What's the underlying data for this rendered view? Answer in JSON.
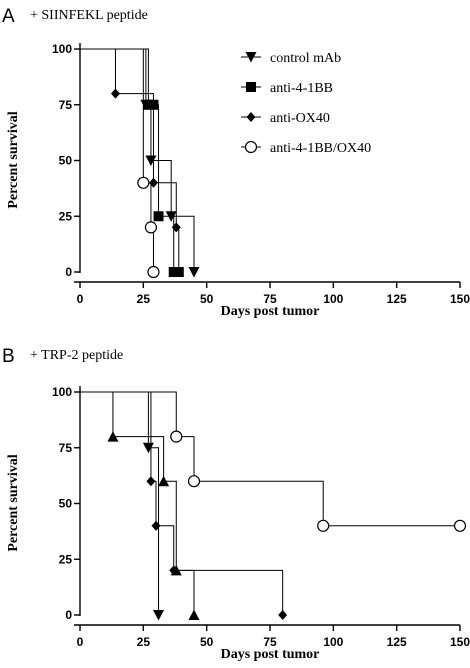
{
  "chart_data": [
    {
      "type": "line",
      "panel_label": "A",
      "title": "+ SIINFEKL peptide",
      "xlabel": "Days post tumor",
      "ylabel": "Percent survival",
      "xlim": [
        0,
        150
      ],
      "ylim": [
        0,
        100
      ],
      "x_ticks": [
        "0",
        "25",
        "50",
        "75",
        "100",
        "125",
        "150"
      ],
      "y_ticks": [
        "0",
        "25",
        "50",
        "75",
        "100"
      ],
      "legend_position": "top-right",
      "series": [
        {
          "name": "control mAb",
          "marker": "triangle-down",
          "x": [
            0,
            26,
            28,
            36,
            45
          ],
          "y": [
            100,
            75,
            50,
            25,
            0
          ]
        },
        {
          "name": "anti-4-1BB",
          "marker": "square",
          "x": [
            0,
            27,
            29,
            31,
            37,
            39
          ],
          "y": [
            100,
            75,
            75,
            25,
            0,
            0
          ]
        },
        {
          "name": "anti-OX40",
          "marker": "diamond",
          "x": [
            0,
            14,
            29,
            38,
            39
          ],
          "y": [
            100,
            80,
            40,
            20,
            0
          ]
        },
        {
          "name": "anti-4-1BB/OX40",
          "marker": "circle-open",
          "x": [
            0,
            25,
            28,
            29
          ],
          "y": [
            100,
            40,
            20,
            0
          ]
        }
      ]
    },
    {
      "type": "line",
      "panel_label": "B",
      "title": "+ TRP-2 peptide",
      "xlabel": "Days post tumor",
      "ylabel": "Percent survival",
      "xlim": [
        0,
        150
      ],
      "ylim": [
        0,
        100
      ],
      "x_ticks": [
        "0",
        "25",
        "50",
        "75",
        "100",
        "125",
        "150"
      ],
      "y_ticks": [
        "0",
        "25",
        "50",
        "75",
        "100"
      ],
      "series": [
        {
          "name": "",
          "marker": "triangle-down",
          "x": [
            0,
            27,
            31
          ],
          "y": [
            100,
            75,
            0
          ]
        },
        {
          "name": "",
          "marker": "triangle-up",
          "x": [
            0,
            13,
            33,
            38,
            45
          ],
          "y": [
            100,
            80,
            60,
            20,
            0
          ]
        },
        {
          "name": "",
          "marker": "diamond",
          "x": [
            0,
            28,
            30,
            37,
            80
          ],
          "y": [
            100,
            60,
            40,
            20,
            0
          ]
        },
        {
          "name": "",
          "marker": "circle-open",
          "x": [
            0,
            38,
            45,
            96,
            150
          ],
          "y": [
            100,
            80,
            60,
            40,
            40
          ]
        }
      ]
    }
  ]
}
